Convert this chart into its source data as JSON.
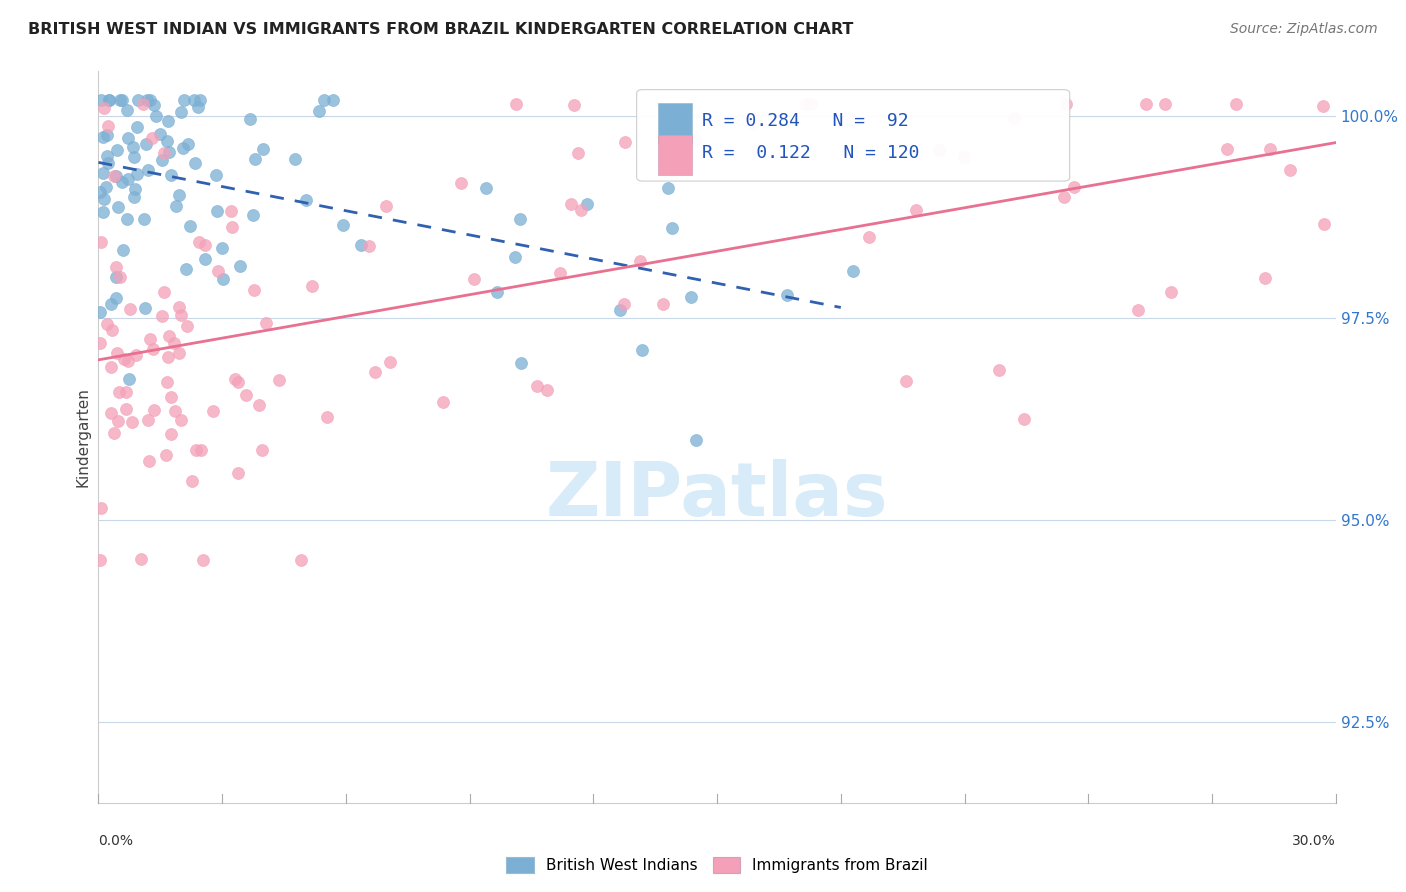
{
  "title": "BRITISH WEST INDIAN VS IMMIGRANTS FROM BRAZIL KINDERGARTEN CORRELATION CHART",
  "source": "Source: ZipAtlas.com",
  "ylabel": "Kindergarten",
  "yticks": [
    92.5,
    95.0,
    97.5,
    100.0
  ],
  "ytick_labels": [
    "92.5%",
    "95.0%",
    "97.5%",
    "100.0%"
  ],
  "xmin": 0.0,
  "xmax": 0.3,
  "ymin": 91.5,
  "ymax": 100.55,
  "r_blue": 0.284,
  "n_blue": 92,
  "r_pink": 0.122,
  "n_pink": 120,
  "blue_color": "#7BAFD4",
  "pink_color": "#F4A0B8",
  "blue_line_color": "#3060B0",
  "pink_line_color": "#E87090",
  "legend_r_color": "#2255BB",
  "watermark_color": "#D8EBF8",
  "legend_label_blue": "British West Indians",
  "legend_label_pink": "Immigrants from Brazil"
}
